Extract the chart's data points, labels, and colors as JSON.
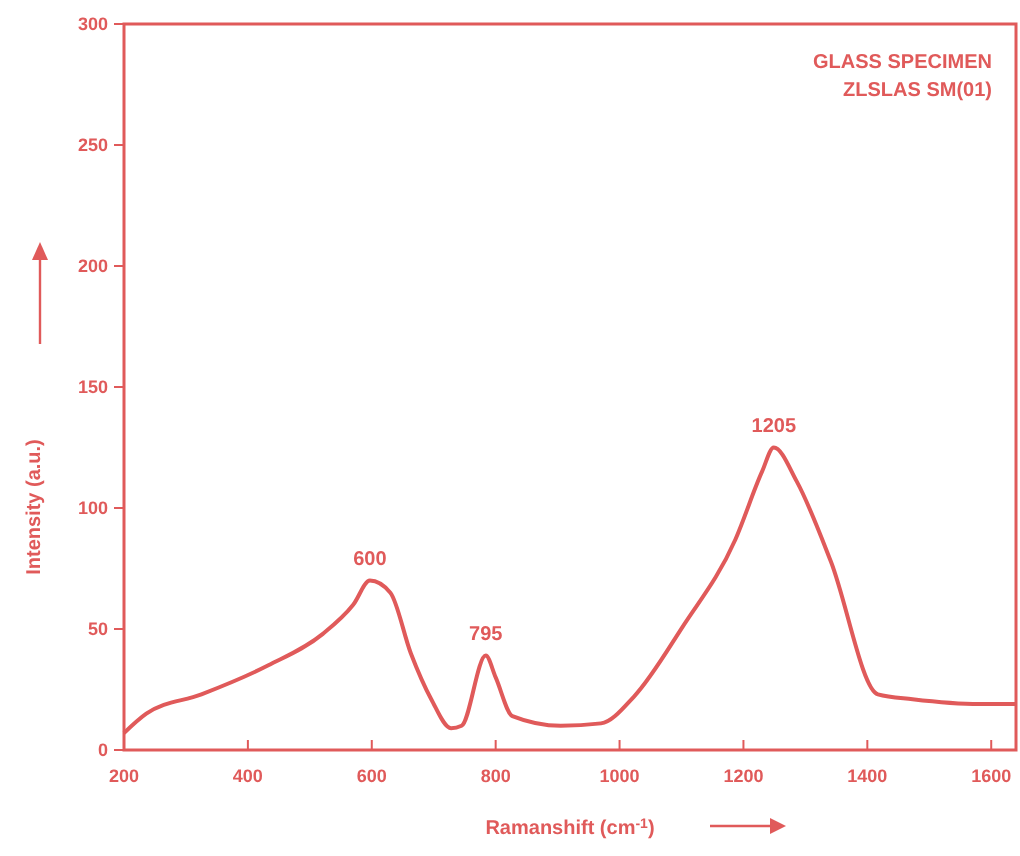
{
  "chart_data": {
    "type": "line",
    "title": "GLASS SPECIMEN",
    "subtitle": "ZLSLAS SM(01)",
    "xlabel": "Ramanshift (cm$^{-1}$)",
    "ylabel": "Intensity (a.u.)",
    "xlim": [
      200,
      1640
    ],
    "xticks": [
      200,
      400,
      600,
      800,
      1000,
      1200,
      1400,
      1600
    ],
    "ylim": [
      0,
      300
    ],
    "yticks": [
      0,
      50,
      100,
      150,
      200,
      250,
      300
    ],
    "series": [
      {
        "color": "#e05a5a",
        "x": [
          200,
          236,
          325,
          433,
          521,
          570,
          597,
          630,
          663,
          696,
          728,
          745,
          784,
          800,
          827,
          905,
          970,
          1023,
          1102,
          1187,
          1230,
          1249,
          1286,
          1341,
          1417,
          1473,
          1581,
          1640
        ],
        "values": [
          7,
          15,
          23,
          35,
          48,
          60,
          70,
          65,
          40,
          21,
          9,
          10,
          39,
          30,
          14,
          10,
          11,
          22,
          51,
          87,
          115,
          125,
          111,
          78,
          23,
          21,
          19,
          19
        ]
      }
    ],
    "annotations": [
      {
        "text": "600",
        "x": 597,
        "y": 70
      },
      {
        "text": "795",
        "x": 784,
        "y": 39
      },
      {
        "text": "1205",
        "x": 1249,
        "y": 125
      }
    ]
  }
}
